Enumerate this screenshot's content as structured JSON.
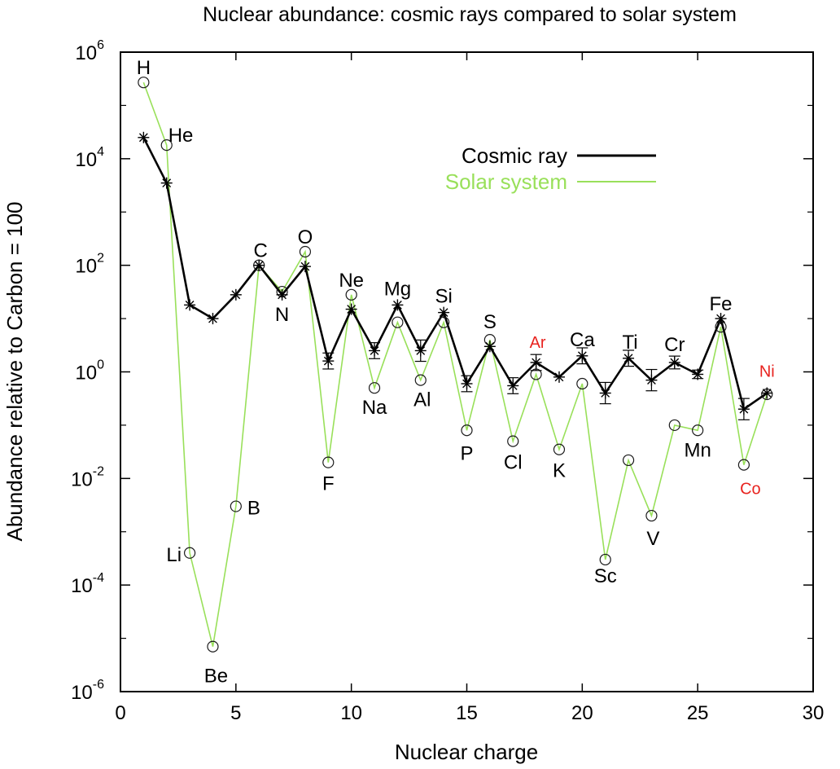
{
  "chart_data": {
    "type": "line",
    "title": "Nuclear abundance: cosmic rays compared to solar system",
    "xlabel": "Nuclear charge",
    "ylabel": "Abundance relative to Carbon = 100",
    "xlim": [
      0,
      30
    ],
    "ylim_log10": [
      -6,
      6
    ],
    "yscale": "log",
    "grid": false,
    "legend_position": "top-right",
    "x_ticks": [
      "0",
      "5",
      "10",
      "15",
      "20",
      "25",
      "30"
    ],
    "y_ticks": [
      {
        "base": "10",
        "exp": "-6"
      },
      {
        "base": "10",
        "exp": "-4"
      },
      {
        "base": "10",
        "exp": "-2"
      },
      {
        "base": "10",
        "exp": "0"
      },
      {
        "base": "10",
        "exp": "2"
      },
      {
        "base": "10",
        "exp": "4"
      },
      {
        "base": "10",
        "exp": "6"
      }
    ],
    "series": [
      {
        "name": "Cosmic ray",
        "color": "#000000",
        "marker": "asterisk",
        "x": [
          1,
          2,
          3,
          4,
          5,
          6,
          7,
          8,
          9,
          10,
          11,
          12,
          13,
          14,
          15,
          16,
          17,
          18,
          19,
          20,
          21,
          22,
          23,
          24,
          25,
          26,
          27,
          28
        ],
        "y": [
          25000,
          3500,
          18,
          10,
          28,
          100,
          28,
          95,
          1.6,
          15,
          2.5,
          18,
          2.5,
          13,
          0.6,
          3,
          0.55,
          1.5,
          0.8,
          2,
          0.4,
          1.8,
          0.7,
          1.5,
          0.9,
          10,
          0.2,
          0.4
        ],
        "error_bars": [
          null,
          null,
          null,
          null,
          null,
          null,
          null,
          null,
          0.15,
          null,
          0.15,
          null,
          0.2,
          null,
          0.15,
          null,
          0.15,
          0.15,
          null,
          0.15,
          0.2,
          0.15,
          0.2,
          0.12,
          0.08,
          null,
          0.2,
          null
        ]
      },
      {
        "name": "Solar system",
        "color": "#99e05a",
        "marker": "circle",
        "x": [
          1,
          2,
          3,
          4,
          5,
          6,
          7,
          8,
          9,
          10,
          11,
          12,
          13,
          14,
          15,
          16,
          17,
          18,
          19,
          20,
          21,
          22,
          23,
          24,
          25,
          26,
          27,
          28
        ],
        "y": [
          270000,
          18000,
          0.0004,
          7e-06,
          0.003,
          100,
          32,
          180,
          0.02,
          28,
          0.5,
          8.5,
          0.7,
          8.5,
          0.08,
          4,
          0.05,
          0.9,
          0.035,
          0.6,
          0.0003,
          0.022,
          0.002,
          0.1,
          0.08,
          7,
          0.018,
          0.38
        ]
      }
    ],
    "element_labels": [
      {
        "text": "H",
        "x": 1,
        "y": 270000,
        "dx": 0,
        "dy": -10,
        "anchor": "middle",
        "color": "#000000"
      },
      {
        "text": "He",
        "x": 2,
        "y": 18000,
        "dx": 2,
        "dy": -4,
        "anchor": "start",
        "color": "#000000"
      },
      {
        "text": "Li",
        "x": 3,
        "y": 0.0004,
        "dx": -10,
        "dy": 10,
        "anchor": "end",
        "color": "#000000"
      },
      {
        "text": "Be",
        "x": 4,
        "y": 7e-06,
        "dx": 4,
        "dy": 44,
        "anchor": "middle",
        "color": "#000000"
      },
      {
        "text": "B",
        "x": 5,
        "y": 0.003,
        "dx": 14,
        "dy": 10,
        "anchor": "start",
        "color": "#000000"
      },
      {
        "text": "C",
        "x": 6,
        "y": 100,
        "dx": 2,
        "dy": -10,
        "anchor": "middle",
        "color": "#000000"
      },
      {
        "text": "N",
        "x": 7,
        "y": 28,
        "dx": 0,
        "dy": 32,
        "anchor": "middle",
        "color": "#000000"
      },
      {
        "text": "O",
        "x": 8,
        "y": 180,
        "dx": 0,
        "dy": -10,
        "anchor": "middle",
        "color": "#000000"
      },
      {
        "text": "F",
        "x": 9,
        "y": 0.02,
        "dx": 0,
        "dy": 34,
        "anchor": "middle",
        "color": "#000000"
      },
      {
        "text": "Ne",
        "x": 10,
        "y": 28,
        "dx": 0,
        "dy": -10,
        "anchor": "middle",
        "color": "#000000"
      },
      {
        "text": "Na",
        "x": 11,
        "y": 0.5,
        "dx": 0,
        "dy": 32,
        "anchor": "middle",
        "color": "#000000"
      },
      {
        "text": "Mg",
        "x": 12,
        "y": 18,
        "dx": 0,
        "dy": -12,
        "anchor": "middle",
        "color": "#000000"
      },
      {
        "text": "Al",
        "x": 13,
        "y": 0.7,
        "dx": 2,
        "dy": 32,
        "anchor": "middle",
        "color": "#000000"
      },
      {
        "text": "Si",
        "x": 14,
        "y": 13,
        "dx": 0,
        "dy": -12,
        "anchor": "middle",
        "color": "#000000"
      },
      {
        "text": "P",
        "x": 15,
        "y": 0.08,
        "dx": 0,
        "dy": 36,
        "anchor": "middle",
        "color": "#000000"
      },
      {
        "text": "S",
        "x": 16,
        "y": 4,
        "dx": 0,
        "dy": -14,
        "anchor": "middle",
        "color": "#000000"
      },
      {
        "text": "Cl",
        "x": 17,
        "y": 0.05,
        "dx": 0,
        "dy": 34,
        "anchor": "middle",
        "color": "#000000"
      },
      {
        "text": "Ar",
        "x": 18,
        "y": 1.5,
        "dx": 2,
        "dy": -18,
        "anchor": "middle",
        "color": "#e8231f"
      },
      {
        "text": "K",
        "x": 19,
        "y": 0.035,
        "dx": 0,
        "dy": 34,
        "anchor": "middle",
        "color": "#000000"
      },
      {
        "text": "Ca",
        "x": 20,
        "y": 2,
        "dx": 0,
        "dy": -12,
        "anchor": "middle",
        "color": "#000000"
      },
      {
        "text": "Sc",
        "x": 21,
        "y": 0.0003,
        "dx": 0,
        "dy": 28,
        "anchor": "middle",
        "color": "#000000"
      },
      {
        "text": "Ti",
        "x": 22,
        "y": 1.8,
        "dx": 2,
        "dy": -12,
        "anchor": "middle",
        "color": "#000000"
      },
      {
        "text": "V",
        "x": 23,
        "y": 0.002,
        "dx": 2,
        "dy": 36,
        "anchor": "middle",
        "color": "#000000"
      },
      {
        "text": "Cr",
        "x": 24,
        "y": 1.5,
        "dx": 0,
        "dy": -14,
        "anchor": "middle",
        "color": "#000000"
      },
      {
        "text": "Mn",
        "x": 25,
        "y": 0.08,
        "dx": 0,
        "dy": 32,
        "anchor": "middle",
        "color": "#000000"
      },
      {
        "text": "Fe",
        "x": 26,
        "y": 10,
        "dx": 0,
        "dy": -10,
        "anchor": "middle",
        "color": "#000000"
      },
      {
        "text": "Co",
        "x": 27,
        "y": 0.018,
        "dx": 8,
        "dy": 36,
        "anchor": "middle",
        "color": "#e8231f"
      },
      {
        "text": "Ni",
        "x": 28,
        "y": 0.4,
        "dx": 0,
        "dy": -20,
        "anchor": "middle",
        "color": "#e8231f"
      }
    ]
  }
}
